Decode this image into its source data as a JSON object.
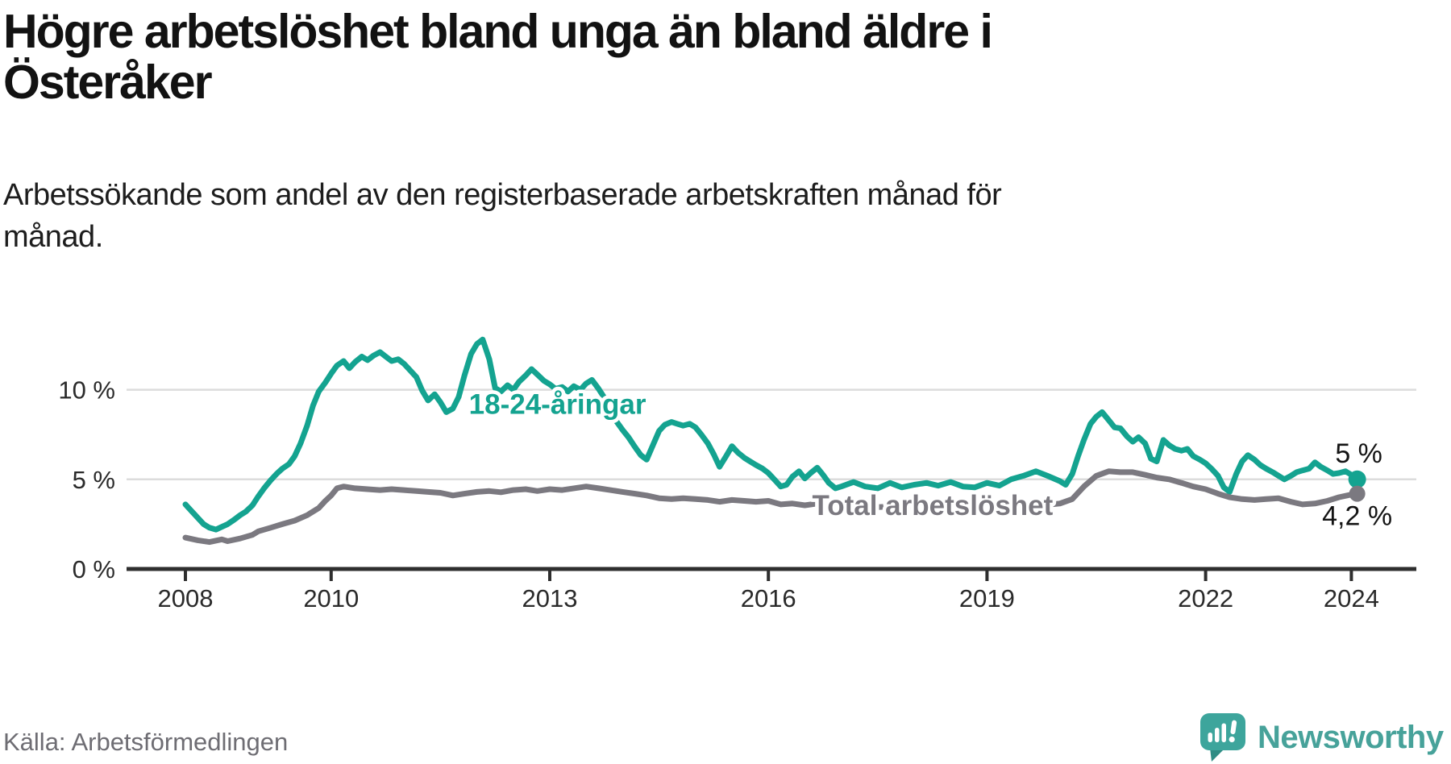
{
  "chart_data": {
    "type": "line",
    "title_lines": [
      "Högre arbetslöshet bland unga än bland äldre i",
      "Österåker"
    ],
    "subtitle_lines": [
      "Arbetssökande som andel av den registerbaserade arbetskraften månad för",
      "månad."
    ],
    "unit": "%",
    "grid": true,
    "legend_position": "inline-labels-on-lines",
    "x_range": [
      2007.2,
      2024.9
    ],
    "y_axis": {
      "range": [
        0,
        13.6
      ],
      "ticks": [
        {
          "value": 0,
          "label": "0 %"
        },
        {
          "value": 5,
          "label": "5 %"
        },
        {
          "value": 10,
          "label": "10 %"
        }
      ]
    },
    "x_axis": {
      "ticks": [
        {
          "value": 2008,
          "label": "2008"
        },
        {
          "value": 2010,
          "label": "2010"
        },
        {
          "value": 2013,
          "label": "2013"
        },
        {
          "value": 2016,
          "label": "2016"
        },
        {
          "value": 2019,
          "label": "2019"
        },
        {
          "value": 2022,
          "label": "2022"
        },
        {
          "value": 2024,
          "label": "2024"
        }
      ]
    },
    "series": [
      {
        "name": "18-24-åringar",
        "color": "#14a390",
        "line_label": {
          "text": "18-24-åringar",
          "x": 2011.89,
          "y": 9.2
        },
        "end": {
          "dot": true,
          "annotation": "5 %",
          "last_value": 5.0
        },
        "points": [
          [
            2008.0,
            3.6
          ],
          [
            2008.08,
            3.25
          ],
          [
            2008.17,
            2.85
          ],
          [
            2008.25,
            2.5
          ],
          [
            2008.33,
            2.3
          ],
          [
            2008.42,
            2.2
          ],
          [
            2008.5,
            2.35
          ],
          [
            2008.58,
            2.5
          ],
          [
            2008.67,
            2.75
          ],
          [
            2008.75,
            3.0
          ],
          [
            2008.83,
            3.2
          ],
          [
            2008.92,
            3.55
          ],
          [
            2009.0,
            4.05
          ],
          [
            2009.08,
            4.5
          ],
          [
            2009.17,
            4.95
          ],
          [
            2009.25,
            5.3
          ],
          [
            2009.33,
            5.6
          ],
          [
            2009.42,
            5.85
          ],
          [
            2009.5,
            6.3
          ],
          [
            2009.58,
            7.0
          ],
          [
            2009.67,
            8.0
          ],
          [
            2009.75,
            9.1
          ],
          [
            2009.83,
            9.9
          ],
          [
            2009.92,
            10.4
          ],
          [
            2010.0,
            10.9
          ],
          [
            2010.08,
            11.35
          ],
          [
            2010.17,
            11.6
          ],
          [
            2010.25,
            11.2
          ],
          [
            2010.33,
            11.55
          ],
          [
            2010.42,
            11.85
          ],
          [
            2010.5,
            11.65
          ],
          [
            2010.58,
            11.9
          ],
          [
            2010.67,
            12.1
          ],
          [
            2010.75,
            11.85
          ],
          [
            2010.83,
            11.6
          ],
          [
            2010.92,
            11.7
          ],
          [
            2011.0,
            11.45
          ],
          [
            2011.08,
            11.1
          ],
          [
            2011.17,
            10.7
          ],
          [
            2011.25,
            9.95
          ],
          [
            2011.33,
            9.4
          ],
          [
            2011.42,
            9.75
          ],
          [
            2011.5,
            9.3
          ],
          [
            2011.58,
            8.75
          ],
          [
            2011.67,
            8.95
          ],
          [
            2011.75,
            9.6
          ],
          [
            2011.83,
            10.8
          ],
          [
            2011.92,
            12.0
          ],
          [
            2012.0,
            12.55
          ],
          [
            2012.08,
            12.8
          ],
          [
            2012.17,
            11.7
          ],
          [
            2012.25,
            10.1
          ],
          [
            2012.33,
            9.9
          ],
          [
            2012.42,
            10.25
          ],
          [
            2012.5,
            10.0
          ],
          [
            2012.58,
            10.45
          ],
          [
            2012.67,
            10.8
          ],
          [
            2012.75,
            11.15
          ],
          [
            2012.83,
            10.85
          ],
          [
            2012.92,
            10.5
          ],
          [
            2013.0,
            10.3
          ],
          [
            2013.08,
            10.05
          ],
          [
            2013.17,
            10.15
          ],
          [
            2013.25,
            9.9
          ],
          [
            2013.33,
            10.2
          ],
          [
            2013.42,
            10.0
          ],
          [
            2013.5,
            10.35
          ],
          [
            2013.58,
            10.55
          ],
          [
            2013.67,
            10.05
          ],
          [
            2013.75,
            9.55
          ],
          [
            2013.83,
            8.85
          ],
          [
            2013.92,
            8.2
          ],
          [
            2014.0,
            7.75
          ],
          [
            2014.08,
            7.35
          ],
          [
            2014.17,
            6.8
          ],
          [
            2014.25,
            6.35
          ],
          [
            2014.33,
            6.1
          ],
          [
            2014.42,
            6.95
          ],
          [
            2014.5,
            7.7
          ],
          [
            2014.58,
            8.05
          ],
          [
            2014.67,
            8.2
          ],
          [
            2014.75,
            8.1
          ],
          [
            2014.83,
            8.0
          ],
          [
            2014.92,
            8.1
          ],
          [
            2015.0,
            7.9
          ],
          [
            2015.08,
            7.5
          ],
          [
            2015.17,
            7.0
          ],
          [
            2015.25,
            6.4
          ],
          [
            2015.33,
            5.7
          ],
          [
            2015.42,
            6.3
          ],
          [
            2015.5,
            6.85
          ],
          [
            2015.58,
            6.5
          ],
          [
            2015.67,
            6.2
          ],
          [
            2015.75,
            6.0
          ],
          [
            2015.83,
            5.8
          ],
          [
            2015.92,
            5.6
          ],
          [
            2016.0,
            5.35
          ],
          [
            2016.08,
            5.0
          ],
          [
            2016.17,
            4.6
          ],
          [
            2016.25,
            4.7
          ],
          [
            2016.33,
            5.15
          ],
          [
            2016.42,
            5.45
          ],
          [
            2016.5,
            5.05
          ],
          [
            2016.58,
            5.35
          ],
          [
            2016.67,
            5.65
          ],
          [
            2016.75,
            5.25
          ],
          [
            2016.83,
            4.8
          ],
          [
            2016.92,
            4.5
          ],
          [
            2017.0,
            4.6
          ],
          [
            2017.17,
            4.85
          ],
          [
            2017.33,
            4.6
          ],
          [
            2017.5,
            4.5
          ],
          [
            2017.67,
            4.8
          ],
          [
            2017.83,
            4.55
          ],
          [
            2018.0,
            4.7
          ],
          [
            2018.17,
            4.8
          ],
          [
            2018.33,
            4.65
          ],
          [
            2018.5,
            4.85
          ],
          [
            2018.67,
            4.6
          ],
          [
            2018.83,
            4.55
          ],
          [
            2019.0,
            4.8
          ],
          [
            2019.17,
            4.65
          ],
          [
            2019.33,
            5.0
          ],
          [
            2019.5,
            5.2
          ],
          [
            2019.67,
            5.45
          ],
          [
            2019.83,
            5.2
          ],
          [
            2020.0,
            4.9
          ],
          [
            2020.08,
            4.7
          ],
          [
            2020.17,
            5.3
          ],
          [
            2020.25,
            6.3
          ],
          [
            2020.33,
            7.2
          ],
          [
            2020.42,
            8.1
          ],
          [
            2020.5,
            8.5
          ],
          [
            2020.58,
            8.75
          ],
          [
            2020.67,
            8.3
          ],
          [
            2020.75,
            7.9
          ],
          [
            2020.83,
            7.85
          ],
          [
            2020.92,
            7.4
          ],
          [
            2021.0,
            7.1
          ],
          [
            2021.08,
            7.35
          ],
          [
            2021.17,
            7.0
          ],
          [
            2021.25,
            6.15
          ],
          [
            2021.33,
            6.0
          ],
          [
            2021.42,
            7.2
          ],
          [
            2021.5,
            6.9
          ],
          [
            2021.58,
            6.7
          ],
          [
            2021.67,
            6.6
          ],
          [
            2021.75,
            6.7
          ],
          [
            2021.83,
            6.3
          ],
          [
            2021.92,
            6.1
          ],
          [
            2022.0,
            5.9
          ],
          [
            2022.08,
            5.6
          ],
          [
            2022.17,
            5.2
          ],
          [
            2022.25,
            4.55
          ],
          [
            2022.33,
            4.3
          ],
          [
            2022.42,
            5.3
          ],
          [
            2022.5,
            6.0
          ],
          [
            2022.58,
            6.35
          ],
          [
            2022.67,
            6.1
          ],
          [
            2022.75,
            5.8
          ],
          [
            2022.83,
            5.6
          ],
          [
            2022.92,
            5.4
          ],
          [
            2023.0,
            5.2
          ],
          [
            2023.08,
            5.0
          ],
          [
            2023.17,
            5.2
          ],
          [
            2023.25,
            5.4
          ],
          [
            2023.33,
            5.5
          ],
          [
            2023.42,
            5.6
          ],
          [
            2023.5,
            5.95
          ],
          [
            2023.58,
            5.7
          ],
          [
            2023.67,
            5.5
          ],
          [
            2023.75,
            5.3
          ],
          [
            2023.83,
            5.35
          ],
          [
            2023.92,
            5.45
          ],
          [
            2024.0,
            5.25
          ],
          [
            2024.08,
            5.0
          ]
        ]
      },
      {
        "name": "Total arbetslöshet",
        "color": "#7b7980",
        "line_label": {
          "text": "Total arbetslöshet",
          "x": 2016.6,
          "y": 3.55
        },
        "end": {
          "dot": true,
          "annotation": "4,2 %",
          "last_value": 4.2
        },
        "points": [
          [
            2008.0,
            1.75
          ],
          [
            2008.17,
            1.6
          ],
          [
            2008.33,
            1.5
          ],
          [
            2008.5,
            1.65
          ],
          [
            2008.58,
            1.55
          ],
          [
            2008.75,
            1.7
          ],
          [
            2008.92,
            1.9
          ],
          [
            2009.0,
            2.1
          ],
          [
            2009.17,
            2.3
          ],
          [
            2009.33,
            2.5
          ],
          [
            2009.5,
            2.7
          ],
          [
            2009.67,
            3.0
          ],
          [
            2009.83,
            3.4
          ],
          [
            2009.92,
            3.8
          ],
          [
            2010.0,
            4.1
          ],
          [
            2010.08,
            4.5
          ],
          [
            2010.17,
            4.6
          ],
          [
            2010.33,
            4.5
          ],
          [
            2010.5,
            4.45
          ],
          [
            2010.67,
            4.4
          ],
          [
            2010.83,
            4.45
          ],
          [
            2011.0,
            4.4
          ],
          [
            2011.17,
            4.35
          ],
          [
            2011.33,
            4.3
          ],
          [
            2011.5,
            4.25
          ],
          [
            2011.67,
            4.1
          ],
          [
            2011.83,
            4.2
          ],
          [
            2012.0,
            4.3
          ],
          [
            2012.17,
            4.35
          ],
          [
            2012.33,
            4.28
          ],
          [
            2012.5,
            4.4
          ],
          [
            2012.67,
            4.45
          ],
          [
            2012.83,
            4.35
          ],
          [
            2013.0,
            4.45
          ],
          [
            2013.17,
            4.4
          ],
          [
            2013.33,
            4.5
          ],
          [
            2013.5,
            4.6
          ],
          [
            2013.67,
            4.5
          ],
          [
            2013.83,
            4.4
          ],
          [
            2014.0,
            4.3
          ],
          [
            2014.17,
            4.2
          ],
          [
            2014.33,
            4.1
          ],
          [
            2014.5,
            3.95
          ],
          [
            2014.67,
            3.9
          ],
          [
            2014.83,
            3.95
          ],
          [
            2015.0,
            3.9
          ],
          [
            2015.17,
            3.85
          ],
          [
            2015.33,
            3.75
          ],
          [
            2015.5,
            3.85
          ],
          [
            2015.67,
            3.8
          ],
          [
            2015.83,
            3.75
          ],
          [
            2016.0,
            3.8
          ],
          [
            2016.17,
            3.6
          ],
          [
            2016.33,
            3.65
          ],
          [
            2016.5,
            3.55
          ],
          [
            2016.67,
            3.65
          ],
          [
            2016.83,
            3.6
          ],
          [
            2017.0,
            3.55
          ],
          [
            2017.25,
            3.5
          ],
          [
            2017.5,
            3.45
          ],
          [
            2017.75,
            3.5
          ],
          [
            2018.0,
            3.45
          ],
          [
            2018.25,
            3.4
          ],
          [
            2018.5,
            3.35
          ],
          [
            2018.75,
            3.3
          ],
          [
            2019.0,
            3.4
          ],
          [
            2019.25,
            3.45
          ],
          [
            2019.5,
            3.5
          ],
          [
            2019.75,
            3.55
          ],
          [
            2020.0,
            3.65
          ],
          [
            2020.17,
            3.9
          ],
          [
            2020.33,
            4.6
          ],
          [
            2020.5,
            5.2
          ],
          [
            2020.67,
            5.45
          ],
          [
            2020.83,
            5.4
          ],
          [
            2021.0,
            5.4
          ],
          [
            2021.17,
            5.25
          ],
          [
            2021.33,
            5.1
          ],
          [
            2021.5,
            5.0
          ],
          [
            2021.67,
            4.8
          ],
          [
            2021.83,
            4.6
          ],
          [
            2022.0,
            4.45
          ],
          [
            2022.17,
            4.2
          ],
          [
            2022.33,
            4.0
          ],
          [
            2022.5,
            3.9
          ],
          [
            2022.67,
            3.85
          ],
          [
            2022.83,
            3.9
          ],
          [
            2023.0,
            3.95
          ],
          [
            2023.17,
            3.75
          ],
          [
            2023.33,
            3.6
          ],
          [
            2023.5,
            3.65
          ],
          [
            2023.67,
            3.8
          ],
          [
            2023.83,
            4.0
          ],
          [
            2024.0,
            4.15
          ],
          [
            2024.08,
            4.2
          ]
        ]
      }
    ]
  },
  "footer": {
    "source": "Källa: Arbetsförmedlingen",
    "brand": "Newsworthy"
  },
  "colors": {
    "accent_teal": "#14a390",
    "series_gray": "#7b7980",
    "gridline": "#dcdcdc",
    "axis": "#2e2e2e",
    "text": "#121212",
    "muted_text": "#6e6d73",
    "brand_teal": "#47a29a"
  }
}
